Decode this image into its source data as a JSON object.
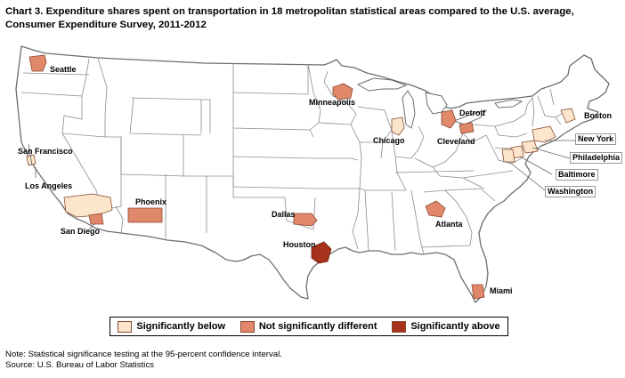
{
  "title": "Chart 3. Expenditure shares spent on transportation in 18 metropolitan statistical areas compared to the U.S. average, Consumer Expenditure Survey, 2011-2012",
  "colors": {
    "significantly_below": "#fbe6cc",
    "not_significantly_different": "#e1876a",
    "significantly_above": "#a6321c",
    "state_border": "#8c8c8c"
  },
  "cities": {
    "seattle": "Seattle",
    "san_francisco": "San Francisco",
    "los_angeles": "Los Angeles",
    "san_diego": "San Diego",
    "phoenix": "Phoenix",
    "minneapolis": "Minneapolis",
    "dallas": "Dallas",
    "houston": "Houston",
    "chicago": "Chicago",
    "detroit": "Detroit",
    "cleveland": "Cleveland",
    "atlanta": "Atlanta",
    "miami": "Miami",
    "boston": "Boston",
    "new_york": "New York",
    "philadelphia": "Philadelphia",
    "baltimore": "Baltimore",
    "washington": "Washington"
  },
  "legend": {
    "below": "Significantly below",
    "not_different": "Not significantly different",
    "above": "Significantly above"
  },
  "note": "Note: Statistical significance testing at the 95-percent confidence interval.",
  "source": "Source: U.S. Bureau of Labor Statistics"
}
